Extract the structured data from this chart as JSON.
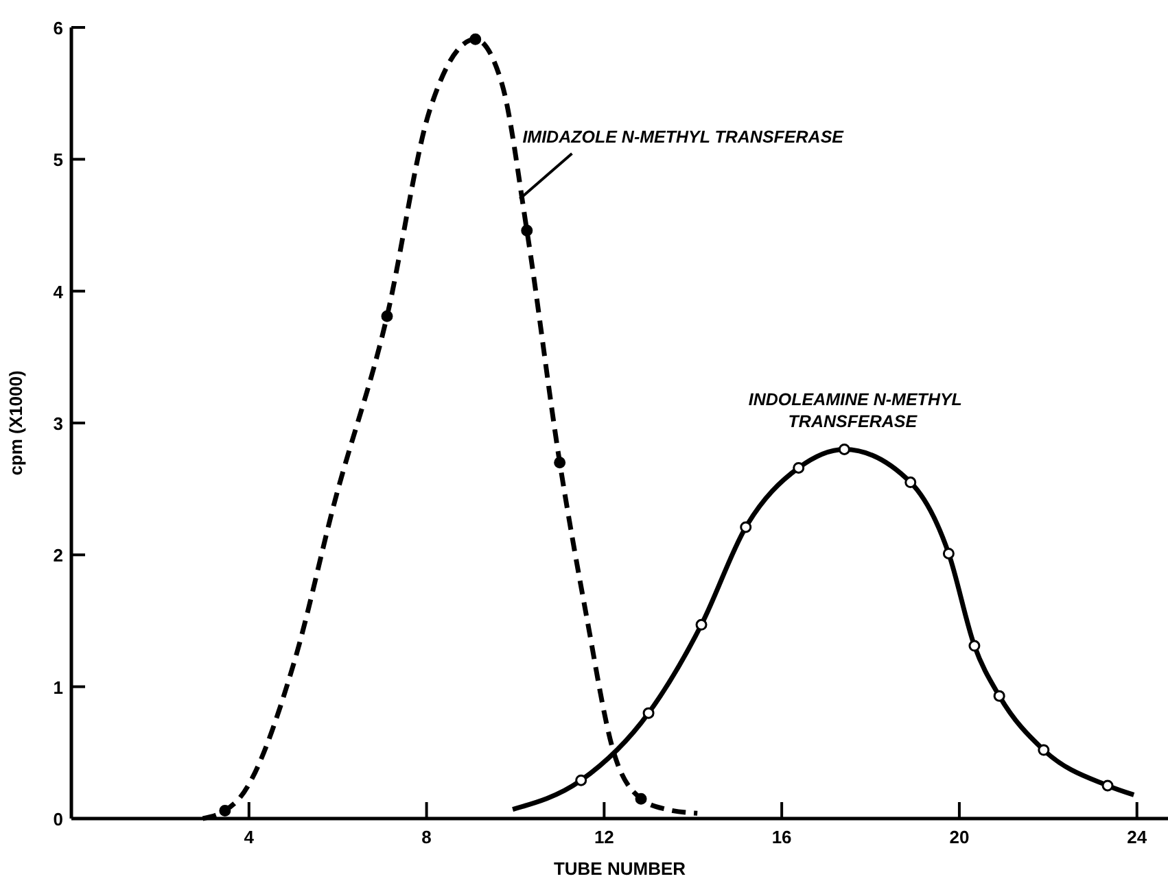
{
  "chart_data": {
    "type": "line",
    "xlabel": "TUBE NUMBER",
    "ylabel": "cpm (X1000)",
    "xlim": [
      0,
      24.7
    ],
    "ylim": [
      0,
      6
    ],
    "xticks": [
      4,
      8,
      12,
      16,
      20,
      24
    ],
    "yticks": [
      0,
      1,
      2,
      3,
      4,
      5,
      6
    ],
    "series": [
      {
        "color": "#000000",
        "line_style": "dashed",
        "marker": "none",
        "x": [
          2.96,
          3.46,
          3.8,
          5.03,
          5.92,
          7.11,
          8.06,
          9.1,
          9.7,
          10.26,
          11.0,
          11.6,
          12.2,
          12.83,
          13.4,
          14.1
        ],
        "values": [
          0,
          0.06,
          0.16,
          1.2,
          2.39,
          3.81,
          5.36,
          5.91,
          5.57,
          4.46,
          2.7,
          1.54,
          0.52,
          0.15,
          0.07,
          0.04
        ]
      },
      {
        "type": "scatter",
        "color": "#000000",
        "marker": "circle",
        "x": [
          3.46,
          7.11,
          9.1,
          10.26,
          11.0,
          12.83
        ],
        "values": [
          0.06,
          3.81,
          5.91,
          4.46,
          2.7,
          0.15
        ]
      },
      {
        "color": "#000000",
        "line_style": "solid",
        "marker": "none",
        "x": [
          9.94,
          11.48,
          13.0,
          14.19,
          15.19,
          16.38,
          17.41,
          18.9,
          19.76,
          20.34,
          20.9,
          21.9,
          23.34,
          23.93
        ],
        "values": [
          0.07,
          0.29,
          0.8,
          1.47,
          2.21,
          2.66,
          2.8,
          2.55,
          2.01,
          1.31,
          0.93,
          0.52,
          0.25,
          0.18
        ]
      },
      {
        "type": "scatter",
        "color": "#ffffff",
        "marker": "circle",
        "x": [
          11.48,
          13.0,
          14.19,
          15.19,
          16.38,
          17.41,
          18.9,
          19.76,
          20.34,
          20.9,
          21.9,
          23.34
        ],
        "values": [
          0.29,
          0.8,
          1.47,
          2.21,
          2.66,
          2.8,
          2.55,
          2.01,
          1.31,
          0.93,
          0.52,
          0.25
        ]
      }
    ],
    "annotations": [
      {
        "text": "IMIDAZOLE N-METHYL TRANSFERASE",
        "x": 10.1,
        "y": 4.7
      },
      {
        "text": "INDOLEAMINE N-METHYL TRANSFERASE",
        "x": 17.41,
        "y": 2.8
      }
    ]
  }
}
